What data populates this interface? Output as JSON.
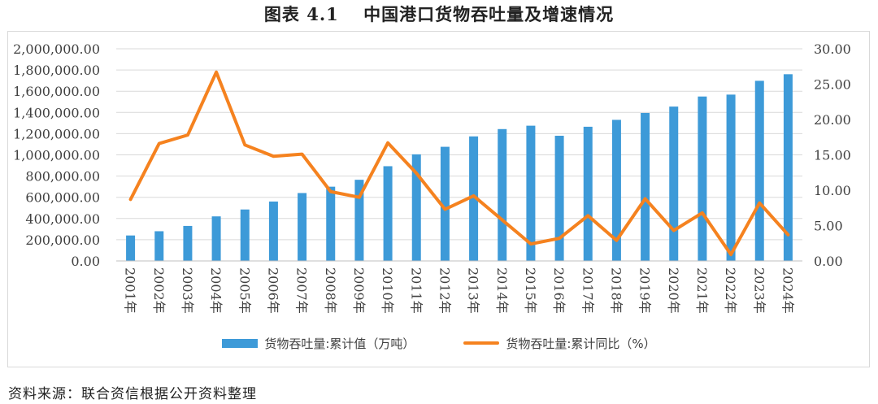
{
  "title": "图表 4.1　 中国港口货物吞吐量及增速情况",
  "source": "资料来源：联合资信根据公开资料整理",
  "colors": {
    "bar": "#3d9ad8",
    "line": "#f5821f",
    "grid": "#d9d9d9"
  },
  "chart_data": {
    "type": "bar",
    "categories": [
      "2001年",
      "2002年",
      "2003年",
      "2004年",
      "2005年",
      "2006年",
      "2007年",
      "2008年",
      "2009年",
      "2010年",
      "2011年",
      "2012年",
      "2013年",
      "2014年",
      "2015年",
      "2016年",
      "2017年",
      "2018年",
      "2019年",
      "2020年",
      "2021年",
      "2022年",
      "2023年",
      "2024年"
    ],
    "series": [
      {
        "name": "货物吞吐量:累计值（万吨）",
        "type": "bar",
        "axis": "left",
        "values": [
          240000,
          280000,
          330000,
          420000,
          485000,
          560000,
          640000,
          700000,
          765000,
          893000,
          1005000,
          1076000,
          1174000,
          1243000,
          1275000,
          1180000,
          1265000,
          1330000,
          1395000,
          1455000,
          1550000,
          1568000,
          1698000,
          1760000
        ]
      },
      {
        "name": "货物吞吐量:累计同比（%）",
        "type": "line",
        "axis": "right",
        "values": [
          8.7,
          16.6,
          17.8,
          26.7,
          16.4,
          14.8,
          15.1,
          9.8,
          9.0,
          16.7,
          12.4,
          7.3,
          9.2,
          5.8,
          2.4,
          3.2,
          6.4,
          2.9,
          8.8,
          4.3,
          6.8,
          0.9,
          8.2,
          3.7
        ]
      }
    ],
    "yleft": {
      "min": 0,
      "max": 2000000,
      "ticks": [
        "0.00",
        "200,000.00",
        "400,000.00",
        "600,000.00",
        "800,000.00",
        "1,000,000.00",
        "1,200,000.00",
        "1,400,000.00",
        "1,600,000.00",
        "1,800,000.00",
        "2,000,000.00"
      ]
    },
    "yright": {
      "min": 0,
      "max": 30,
      "ticks": [
        "0.00",
        "5.00",
        "10.00",
        "15.00",
        "20.00",
        "25.00",
        "30.00"
      ]
    },
    "grid": true,
    "legend": "bottom"
  }
}
